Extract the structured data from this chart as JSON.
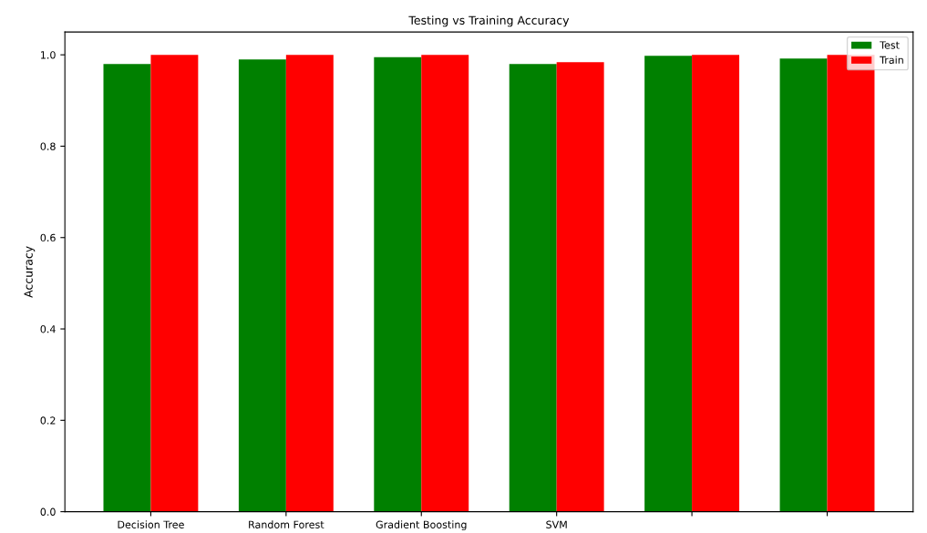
{
  "chart_data": {
    "type": "bar",
    "title": "Testing vs Training Accuracy",
    "ylabel": "Accuracy",
    "categories": [
      "Decision Tree",
      "Random Forest",
      "Gradient Boosting",
      "SVM",
      null,
      null
    ],
    "series": [
      {
        "name": "Test",
        "color": "#008000",
        "values": [
          0.98,
          0.99,
          0.995,
          0.98,
          0.998,
          0.992
        ]
      },
      {
        "name": "Train",
        "color": "#ff0000",
        "values": [
          1.0,
          1.0,
          1.0,
          0.984,
          1.0,
          1.0
        ]
      }
    ],
    "ylim": [
      0,
      1.05
    ],
    "yticks": [
      {
        "value": 0,
        "label": "0.0"
      },
      {
        "value": 0.2,
        "label": "0.2"
      },
      {
        "value": 0.4,
        "label": "0.4"
      },
      {
        "value": 0.6,
        "label": "0.6"
      },
      {
        "value": 0.8,
        "label": "0.8"
      },
      {
        "value": 1.0,
        "label": "1.0"
      }
    ],
    "legend": "top right"
  }
}
